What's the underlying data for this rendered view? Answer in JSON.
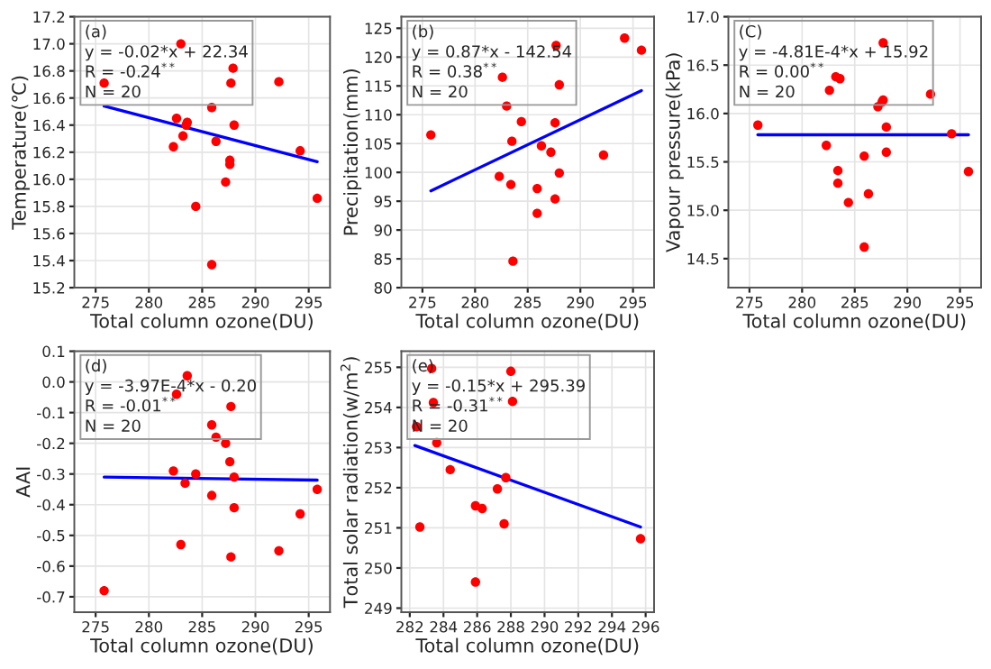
{
  "chart_data": [
    {
      "type": "scatter",
      "xlabel": "Total column ozone(DU)",
      "ylabel": "Temperature(℃)",
      "annotations": [
        "(a)",
        "y = -0.02*x + 22.34",
        "R = -0.24$^{**}$",
        "N = 20"
      ],
      "xlim": [
        273,
        297
      ],
      "xticks": [
        275,
        280,
        285,
        290,
        295
      ],
      "ylim": [
        15.2,
        17.2
      ],
      "yticks": [
        15.2,
        15.4,
        15.6,
        15.8,
        {
          "value": 16.0,
          "label": "16.0"
        },
        16.2,
        16.4,
        16.6,
        16.8,
        {
          "value": 17.0,
          "label": "17.0"
        },
        17.2
      ],
      "grid": true,
      "series": [
        {
          "marker": "circle",
          "color": "#ff0000",
          "x": [
            275.8,
            283.0,
            287.9,
            287.7,
            292.2,
            285.9,
            282.6,
            283.6,
            283.5,
            288.0,
            283.2,
            282.3,
            286.3,
            287.6,
            287.6,
            287.2,
            295.8,
            284.4,
            285.9,
            294.2
          ],
          "values": [
            16.71,
            17.0,
            16.82,
            16.71,
            16.72,
            16.53,
            16.45,
            16.42,
            16.4,
            16.4,
            16.32,
            16.24,
            16.28,
            16.14,
            16.11,
            15.98,
            15.86,
            15.8,
            15.37,
            16.21
          ]
        },
        {
          "type": "line",
          "marker": "none",
          "color": "#0000ff",
          "x": [
            275.8,
            295.8
          ],
          "values": [
            16.54,
            16.13
          ]
        }
      ]
    },
    {
      "type": "scatter",
      "xlabel": "Total column ozone(DU)",
      "ylabel": "Precipitation(mm)",
      "annotations": [
        "(b)",
        "y = 0.87*x - 142.54",
        "R = 0.38$^{**}$",
        "N = 20"
      ],
      "xlim": [
        273,
        297
      ],
      "xticks": [
        275,
        280,
        285,
        290,
        295
      ],
      "ylim": [
        80,
        127
      ],
      "yticks": [
        80,
        85,
        90,
        95,
        100,
        105,
        110,
        115,
        120,
        125
      ],
      "grid": true,
      "series": [
        {
          "marker": "circle",
          "color": "#ff0000",
          "x": [
            287.7,
            294.2,
            295.8,
            282.6,
            288.0,
            283.0,
            275.8,
            284.4,
            287.6,
            283.5,
            286.3,
            287.2,
            292.2,
            282.3,
            288.0,
            283.4,
            285.9,
            287.6,
            285.9,
            283.6
          ],
          "values": [
            122.0,
            123.3,
            121.2,
            116.5,
            115.2,
            111.5,
            106.5,
            108.8,
            108.6,
            105.4,
            104.6,
            103.5,
            103.0,
            99.3,
            99.9,
            97.9,
            97.2,
            95.4,
            92.9,
            84.6
          ]
        },
        {
          "type": "line",
          "marker": "none",
          "color": "#0000ff",
          "x": [
            275.8,
            295.8
          ],
          "values": [
            96.8,
            114.2
          ]
        }
      ]
    },
    {
      "type": "scatter",
      "xlabel": "Total column ozone(DU)",
      "ylabel": "Vapour pressure(kPa)",
      "annotations": [
        "(C)",
        "y = -4.81E-4*x + 15.92",
        "R = 0.00$^{**}$",
        "N = 20"
      ],
      "xlim": [
        273,
        297
      ],
      "xticks": [
        275,
        280,
        285,
        290,
        295
      ],
      "ylim": [
        14.2,
        17.0
      ],
      "yticks": [
        14.5,
        {
          "value": 15.0,
          "label": "15.0"
        },
        15.5,
        {
          "value": 16.0,
          "label": "16.0"
        },
        16.5,
        {
          "value": 17.0,
          "label": "17.0"
        }
      ],
      "grid": true,
      "series": [
        {
          "marker": "circle",
          "color": "#ff0000",
          "x": [
            287.7,
            283.2,
            283.6,
            282.6,
            287.7,
            287.6,
            287.2,
            292.2,
            275.8,
            288.0,
            294.2,
            282.3,
            285.9,
            288.0,
            283.4,
            295.8,
            283.4,
            286.3,
            284.4,
            285.9
          ],
          "values": [
            16.73,
            16.38,
            16.36,
            16.24,
            16.14,
            16.12,
            16.07,
            16.2,
            15.88,
            15.86,
            15.79,
            15.67,
            15.56,
            15.6,
            15.41,
            15.4,
            15.28,
            15.17,
            15.08,
            14.62
          ]
        },
        {
          "type": "line",
          "marker": "none",
          "color": "#0000ff",
          "x": [
            275.8,
            295.8
          ],
          "values": [
            15.78,
            15.78
          ]
        }
      ]
    },
    {
      "type": "scatter",
      "xlabel": "Total column ozone(DU)",
      "ylabel": "AAI",
      "annotations": [
        "(d)",
        "y = -3.97E-4*x - 0.20",
        "R = -0.01$^{**}$",
        "N = 20"
      ],
      "xlim": [
        273,
        297
      ],
      "xticks": [
        275,
        280,
        285,
        290,
        295
      ],
      "ylim": [
        -0.75,
        0.1
      ],
      "yticks": [
        -0.7,
        -0.6,
        -0.5,
        -0.4,
        -0.3,
        -0.2,
        -0.1,
        {
          "value": 0.0,
          "label": "0.0"
        },
        0.1
      ],
      "grid": true,
      "series": [
        {
          "marker": "circle",
          "color": "#ff0000",
          "x": [
            283.6,
            282.6,
            287.7,
            285.9,
            286.3,
            287.2,
            287.6,
            282.3,
            284.4,
            288.0,
            283.4,
            295.8,
            285.9,
            288.0,
            294.2,
            283.0,
            292.2,
            287.7,
            275.8
          ],
          "values": [
            0.02,
            -0.04,
            -0.08,
            -0.14,
            -0.18,
            -0.2,
            -0.26,
            -0.29,
            -0.3,
            -0.31,
            -0.33,
            -0.35,
            -0.37,
            -0.41,
            -0.43,
            -0.53,
            -0.55,
            -0.57,
            -0.68
          ]
        },
        {
          "type": "line",
          "marker": "none",
          "color": "#0000ff",
          "x": [
            275.8,
            295.8
          ],
          "values": [
            -0.31,
            -0.32
          ]
        }
      ]
    },
    {
      "type": "scatter",
      "xlabel": "Total column ozone(DU)",
      "ylabel": "Total solar radiation(w/m$^{2}$)",
      "annotations": [
        "(e)",
        "y = -0.15*x + 295.39",
        "R = -0.31$^{**}$",
        "N = 20"
      ],
      "xlim": [
        281.5,
        296.5
      ],
      "xticks": [
        282,
        284,
        286,
        288,
        290,
        292,
        294,
        296
      ],
      "ylim": [
        248.9,
        255.4
      ],
      "yticks": [
        249,
        250,
        251,
        252,
        253,
        254,
        255
      ],
      "grid": true,
      "series": [
        {
          "marker": "circle",
          "color": "#ff0000",
          "x": [
            283.3,
            288.0,
            283.4,
            288.1,
            282.4,
            283.6,
            284.4,
            287.7,
            287.2,
            285.9,
            286.3,
            282.6,
            287.6,
            295.7,
            285.9
          ],
          "values": [
            254.97,
            254.9,
            254.12,
            254.15,
            253.52,
            253.12,
            252.45,
            252.25,
            251.97,
            251.55,
            251.48,
            251.02,
            251.1,
            250.73,
            249.65
          ]
        },
        {
          "type": "line",
          "marker": "none",
          "color": "#0000ff",
          "x": [
            282.3,
            295.7
          ],
          "values": [
            253.05,
            251.02
          ]
        }
      ]
    }
  ]
}
